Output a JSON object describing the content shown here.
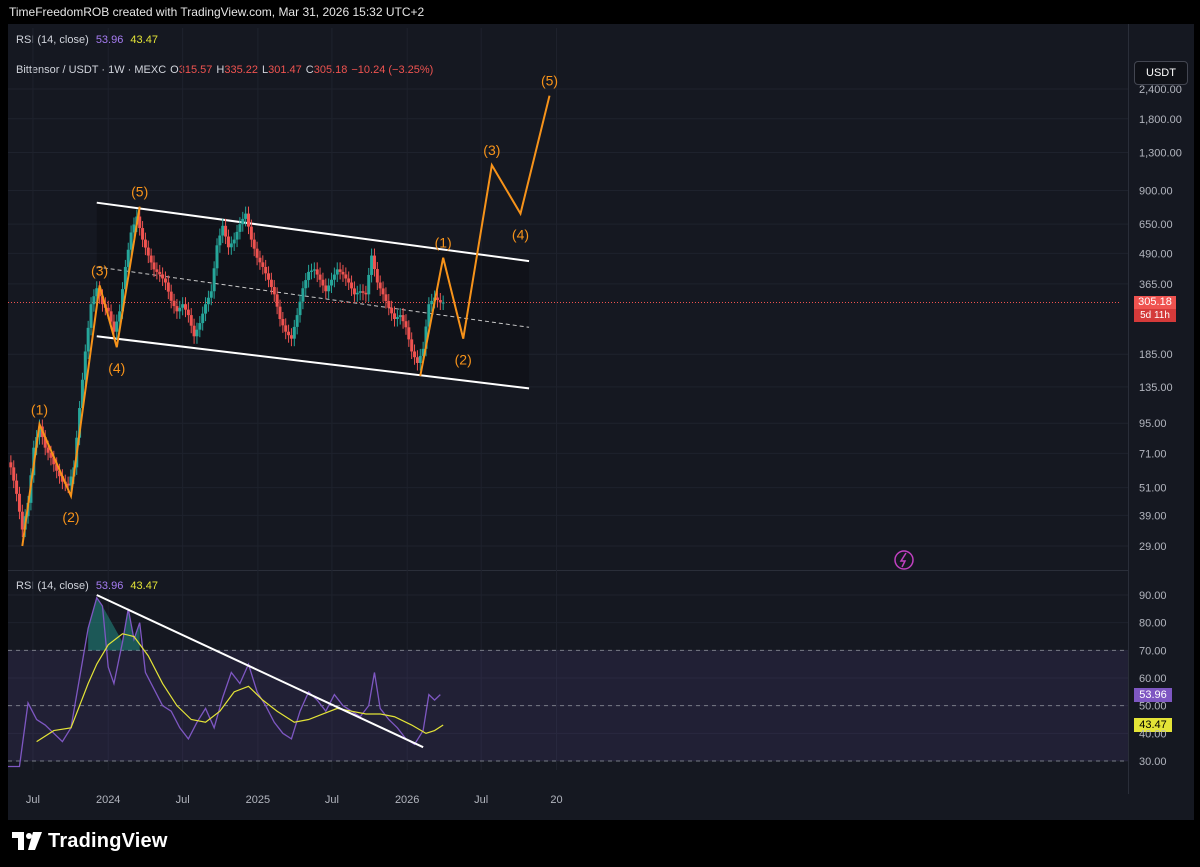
{
  "header": {
    "credit": "TimeFreedomROB created with TradingView.com, Mar 31, 2026 15:32 UTC+2"
  },
  "top_legend": {
    "label": "RSI (14, close)",
    "rsi": "53.96",
    "ma": "43.47"
  },
  "symbol_legend": {
    "symbol": "Bittensor / USDT · 1W · MEXC",
    "open_label": "O",
    "open": "315.57",
    "high_label": "H",
    "high": "335.22",
    "low_label": "L",
    "low": "301.47",
    "close_label": "C",
    "close": "305.18",
    "change": "−10.24 (−3.25%)"
  },
  "currency_button": "USDT",
  "last_price": {
    "price": "305.18",
    "countdown": "5d 11h"
  },
  "rsi_legend": {
    "label": "RSI (14, close)",
    "rsi": "53.96",
    "ma": "43.47"
  },
  "rsi_tags": {
    "rsi": "53.96",
    "ma": "43.47"
  },
  "footer": {
    "brand": "TradingView"
  },
  "colors": {
    "up": "#26a69a",
    "down": "#ef5350",
    "wave": "#f7931a",
    "rsi": "#7e57c2",
    "rsi_ma": "#e4e437",
    "channel": "#ffffff",
    "rsi_band": "#7e57c2"
  },
  "chart_data": [
    {
      "type": "candlestick",
      "title": "Bittensor / USDT · 1W · MEXC",
      "scale": "log",
      "y_ticks": [
        "2,400.00",
        "1,800.00",
        "1,300.00",
        "900.00",
        "650.00",
        "490.00",
        "365.00",
        "185.00",
        "135.00",
        "95.00",
        "71.00",
        "51.00",
        "39.00",
        "29.00"
      ],
      "y_tick_values": [
        2400,
        1800,
        1300,
        900,
        650,
        490,
        365,
        185,
        135,
        95,
        71,
        51,
        39,
        29
      ],
      "x_ticks": [
        "Jul",
        "2024",
        "Jul",
        "2025",
        "Jul",
        "2026",
        "Jul",
        "20"
      ],
      "x_tick_dates": [
        "2023-07-01",
        "2024-01-01",
        "2024-07-01",
        "2025-01-01",
        "2025-07-01",
        "2026-01-01",
        "2026-07-01",
        "2027-01-01"
      ],
      "close_series": [
        [
          "2023-05-08",
          62
        ],
        [
          "2023-05-22",
          48
        ],
        [
          "2023-06-05",
          34
        ],
        [
          "2023-06-19",
          44
        ],
        [
          "2023-07-03",
          75
        ],
        [
          "2023-07-17",
          92
        ],
        [
          "2023-07-31",
          75
        ],
        [
          "2023-08-14",
          68
        ],
        [
          "2023-08-28",
          60
        ],
        [
          "2023-09-11",
          54
        ],
        [
          "2023-09-25",
          52
        ],
        [
          "2023-10-09",
          62
        ],
        [
          "2023-10-23",
          110
        ],
        [
          "2023-11-06",
          190
        ],
        [
          "2023-11-20",
          300
        ],
        [
          "2023-12-04",
          350
        ],
        [
          "2023-12-18",
          300
        ],
        [
          "2024-01-01",
          280
        ],
        [
          "2024-01-15",
          230
        ],
        [
          "2024-01-29",
          280
        ],
        [
          "2024-02-12",
          430
        ],
        [
          "2024-02-26",
          600
        ],
        [
          "2024-03-11",
          700
        ],
        [
          "2024-03-25",
          560
        ],
        [
          "2024-04-08",
          480
        ],
        [
          "2024-04-22",
          420
        ],
        [
          "2024-05-06",
          400
        ],
        [
          "2024-05-20",
          370
        ],
        [
          "2024-06-03",
          310
        ],
        [
          "2024-06-17",
          280
        ],
        [
          "2024-07-01",
          300
        ],
        [
          "2024-07-15",
          270
        ],
        [
          "2024-07-29",
          220
        ],
        [
          "2024-08-12",
          250
        ],
        [
          "2024-08-26",
          300
        ],
        [
          "2024-09-09",
          340
        ],
        [
          "2024-09-23",
          530
        ],
        [
          "2024-10-07",
          640
        ],
        [
          "2024-10-21",
          520
        ],
        [
          "2024-11-04",
          560
        ],
        [
          "2024-11-18",
          650
        ],
        [
          "2024-12-02",
          720
        ],
        [
          "2024-12-16",
          560
        ],
        [
          "2024-12-30",
          470
        ],
        [
          "2025-01-13",
          430
        ],
        [
          "2025-01-27",
          380
        ],
        [
          "2025-02-10",
          330
        ],
        [
          "2025-02-24",
          260
        ],
        [
          "2025-03-10",
          230
        ],
        [
          "2025-03-24",
          215
        ],
        [
          "2025-04-07",
          270
        ],
        [
          "2025-04-21",
          350
        ],
        [
          "2025-05-05",
          410
        ],
        [
          "2025-05-19",
          420
        ],
        [
          "2025-06-02",
          380
        ],
        [
          "2025-06-16",
          340
        ],
        [
          "2025-06-30",
          380
        ],
        [
          "2025-07-14",
          420
        ],
        [
          "2025-07-28",
          400
        ],
        [
          "2025-08-11",
          370
        ],
        [
          "2025-08-25",
          330
        ],
        [
          "2025-09-08",
          340
        ],
        [
          "2025-09-22",
          330
        ],
        [
          "2025-10-06",
          480
        ],
        [
          "2025-10-20",
          370
        ],
        [
          "2025-11-03",
          330
        ],
        [
          "2025-11-17",
          290
        ],
        [
          "2025-12-01",
          260
        ],
        [
          "2025-12-15",
          270
        ],
        [
          "2025-12-29",
          240
        ],
        [
          "2026-01-12",
          190
        ],
        [
          "2026-01-26",
          170
        ],
        [
          "2026-02-09",
          195
        ],
        [
          "2026-02-23",
          300
        ],
        [
          "2026-03-09",
          320
        ],
        [
          "2026-03-23",
          305
        ]
      ],
      "elliott_waves": {
        "labels": [
          "(1)",
          "(2)",
          "(3)",
          "(4)",
          "(5)",
          "(1)",
          "(2)",
          "(3)",
          "(4)",
          "(5)"
        ],
        "path_1": [
          [
            "2023-06-05",
            29
          ],
          [
            "2023-07-17",
            94
          ],
          [
            "2023-10-02",
            47
          ],
          [
            "2023-12-11",
            360
          ],
          [
            "2024-01-22",
            198
          ],
          [
            "2024-03-18",
            770
          ]
        ],
        "path_2": [
          [
            "2026-02-02",
            150
          ],
          [
            "2026-03-30",
            470
          ],
          [
            "2026-05-18",
            215
          ],
          [
            "2026-07-27",
            1150
          ],
          [
            "2026-10-05",
            720
          ],
          [
            "2026-12-15",
            2250
          ]
        ]
      },
      "channel": {
        "upper": [
          [
            "2023-12-04",
            800
          ],
          [
            "2026-10-26",
            455
          ]
        ],
        "middle": [
          [
            "2023-12-04",
            430
          ],
          [
            "2026-10-26",
            240
          ]
        ],
        "lower": [
          [
            "2023-12-04",
            220
          ],
          [
            "2026-10-26",
            133
          ]
        ]
      }
    },
    {
      "type": "line",
      "title": "RSI (14, close)",
      "y_ticks": [
        "90.00",
        "80.00",
        "70.00",
        "60.00",
        "50.00",
        "40.00",
        "30.00"
      ],
      "y_tick_values": [
        90,
        80,
        70,
        60,
        50,
        40,
        30
      ],
      "band": [
        30,
        70
      ],
      "midline": 50,
      "series": [
        {
          "name": "RSI",
          "values": [
            [
              "2023-05-01",
              28
            ],
            [
              "2023-05-29",
              28
            ],
            [
              "2023-06-19",
              51
            ],
            [
              "2023-07-10",
              45
            ],
            [
              "2023-07-31",
              43
            ],
            [
              "2023-08-21",
              40
            ],
            [
              "2023-09-11",
              37
            ],
            [
              "2023-10-02",
              42
            ],
            [
              "2023-10-23",
              60
            ],
            [
              "2023-11-13",
              78
            ],
            [
              "2023-12-04",
              89
            ],
            [
              "2023-12-18",
              86
            ],
            [
              "2024-01-01",
              64
            ],
            [
              "2024-01-15",
              58
            ],
            [
              "2024-02-05",
              73
            ],
            [
              "2024-02-19",
              85
            ],
            [
              "2024-03-04",
              74
            ],
            [
              "2024-03-18",
              80
            ],
            [
              "2024-04-01",
              62
            ],
            [
              "2024-04-22",
              56
            ],
            [
              "2024-05-13",
              50
            ],
            [
              "2024-06-03",
              48
            ],
            [
              "2024-06-24",
              42
            ],
            [
              "2024-07-15",
              38
            ],
            [
              "2024-08-05",
              44
            ],
            [
              "2024-08-26",
              49
            ],
            [
              "2024-09-16",
              42
            ],
            [
              "2024-10-07",
              53
            ],
            [
              "2024-10-28",
              62
            ],
            [
              "2024-11-18",
              58
            ],
            [
              "2024-12-09",
              65
            ],
            [
              "2024-12-30",
              55
            ],
            [
              "2025-01-20",
              50
            ],
            [
              "2025-02-10",
              44
            ],
            [
              "2025-03-03",
              40
            ],
            [
              "2025-03-24",
              38
            ],
            [
              "2025-04-14",
              48
            ],
            [
              "2025-05-05",
              55
            ],
            [
              "2025-05-26",
              52
            ],
            [
              "2025-06-16",
              48
            ],
            [
              "2025-07-07",
              54
            ],
            [
              "2025-07-28",
              50
            ],
            [
              "2025-08-18",
              48
            ],
            [
              "2025-09-08",
              46
            ],
            [
              "2025-09-29",
              50
            ],
            [
              "2025-10-13",
              62
            ],
            [
              "2025-10-27",
              49
            ],
            [
              "2025-11-17",
              45
            ],
            [
              "2025-12-08",
              42
            ],
            [
              "2025-12-29",
              38
            ],
            [
              "2026-01-19",
              36
            ],
            [
              "2026-02-09",
              41
            ],
            [
              "2026-02-23",
              54
            ],
            [
              "2026-03-09",
              52
            ],
            [
              "2026-03-23",
              54
            ]
          ]
        },
        {
          "name": "MA",
          "values": [
            [
              "2023-07-10",
              37
            ],
            [
              "2023-08-21",
              41
            ],
            [
              "2023-10-02",
              42
            ],
            [
              "2023-11-13",
              58
            ],
            [
              "2023-12-04",
              65
            ],
            [
              "2024-01-01",
              72
            ],
            [
              "2024-02-05",
              76
            ],
            [
              "2024-03-04",
              75
            ],
            [
              "2024-04-08",
              68
            ],
            [
              "2024-05-13",
              58
            ],
            [
              "2024-06-17",
              50
            ],
            [
              "2024-07-22",
              45
            ],
            [
              "2024-08-26",
              44
            ],
            [
              "2024-09-30",
              48
            ],
            [
              "2024-11-04",
              55
            ],
            [
              "2024-12-09",
              57
            ],
            [
              "2025-01-13",
              52
            ],
            [
              "2025-02-17",
              48
            ],
            [
              "2025-03-31",
              44
            ],
            [
              "2025-05-05",
              45
            ],
            [
              "2025-06-09",
              47
            ],
            [
              "2025-07-14",
              49
            ],
            [
              "2025-08-18",
              48
            ],
            [
              "2025-09-22",
              47
            ],
            [
              "2025-10-27",
              47
            ],
            [
              "2025-12-01",
              46
            ],
            [
              "2026-01-12",
              43
            ],
            [
              "2026-02-16",
              40
            ],
            [
              "2026-03-09",
              41
            ],
            [
              "2026-03-30",
              43
            ]
          ]
        }
      ],
      "trendline": [
        [
          "2023-12-04",
          90
        ],
        [
          "2026-02-09",
          35
        ]
      ]
    }
  ]
}
